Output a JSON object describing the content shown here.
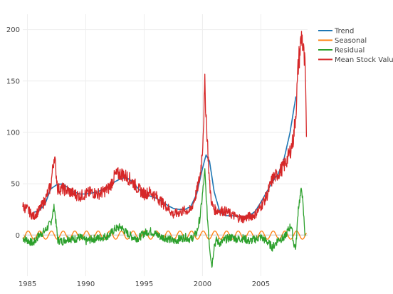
{
  "chart_data": {
    "type": "line",
    "title": "",
    "xlabel": "",
    "ylabel": "",
    "xlim": [
      1984.6,
      2009.0
    ],
    "ylim": [
      -40,
      215
    ],
    "grid": true,
    "legend_position": "top-right",
    "x_ticks": [
      {
        "value": 1985,
        "label": "1985"
      },
      {
        "value": 1990,
        "label": "1990"
      },
      {
        "value": 1995,
        "label": "1995"
      },
      {
        "value": 2000,
        "label": "2000"
      },
      {
        "value": 2005,
        "label": "2005"
      }
    ],
    "y_ticks": [
      {
        "value": 0,
        "label": "0"
      },
      {
        "value": 50,
        "label": "50"
      },
      {
        "value": 100,
        "label": "100"
      },
      {
        "value": 150,
        "label": "150"
      },
      {
        "value": 200,
        "label": "200"
      }
    ],
    "series": [
      {
        "name": "Trend",
        "color": "#1f77b4",
        "x": [
          1985.5,
          1986.0,
          1986.5,
          1987.0,
          1987.5,
          1988.0,
          1988.5,
          1989.0,
          1989.5,
          1990.0,
          1990.5,
          1991.0,
          1991.5,
          1992.0,
          1992.5,
          1993.0,
          1993.5,
          1994.0,
          1994.5,
          1995.0,
          1995.5,
          1996.0,
          1996.5,
          1997.0,
          1997.5,
          1998.0,
          1998.5,
          1999.0,
          1999.5,
          2000.0,
          2000.3,
          2000.6,
          2001.0,
          2001.5,
          2002.0,
          2002.5,
          2003.0,
          2003.5,
          2004.0,
          2004.5,
          2005.0,
          2005.5,
          2006.0,
          2006.5,
          2007.0,
          2007.5,
          2008.0
        ],
        "y": [
          22,
          24,
          30,
          45,
          49,
          50,
          46,
          42,
          40,
          40,
          41,
          42,
          45,
          48,
          52,
          55,
          56,
          52,
          45,
          40,
          38,
          36,
          33,
          29,
          26,
          25,
          25,
          28,
          40,
          65,
          78,
          72,
          42,
          22,
          19,
          19,
          18,
          18,
          19,
          23,
          32,
          42,
          52,
          60,
          75,
          100,
          135
        ]
      },
      {
        "name": "Seasonal",
        "color": "#ff7f0e",
        "x": [
          1984.6,
          2008.9
        ],
        "amplitude": 4,
        "period_years": 1
      },
      {
        "name": "Residual",
        "color": "#2ca02c",
        "x": [
          1984.6,
          1985.0,
          1985.5,
          1986.0,
          1986.5,
          1987.0,
          1987.3,
          1987.6,
          1988.0,
          1988.5,
          1989.0,
          1989.5,
          1990.0,
          1990.5,
          1991.0,
          1991.5,
          1992.0,
          1992.5,
          1993.0,
          1993.5,
          1994.0,
          1994.5,
          1995.0,
          1995.5,
          1996.0,
          1996.5,
          1997.0,
          1997.5,
          1998.0,
          1998.5,
          1999.0,
          1999.5,
          1999.8,
          2000.0,
          2000.2,
          2000.4,
          2000.6,
          2000.8,
          2001.0,
          2001.2,
          2001.5,
          2002.0,
          2002.5,
          2003.0,
          2003.5,
          2004.0,
          2004.5,
          2005.0,
          2005.5,
          2006.0,
          2006.5,
          2007.0,
          2007.3,
          2007.6,
          2007.8,
          2008.0,
          2008.2,
          2008.5,
          2008.8
        ],
        "y": [
          -3,
          -5,
          -8,
          0,
          4,
          12,
          28,
          -5,
          -6,
          -3,
          -4,
          -2,
          -6,
          -4,
          -3,
          -2,
          0,
          6,
          8,
          2,
          -2,
          -3,
          2,
          4,
          1,
          -2,
          -3,
          -6,
          -4,
          -2,
          -4,
          2,
          18,
          40,
          62,
          20,
          -10,
          -30,
          -10,
          -5,
          -8,
          -4,
          -2,
          -4,
          -3,
          -6,
          -4,
          -2,
          -6,
          -12,
          -4,
          -3,
          4,
          10,
          -8,
          -12,
          26,
          46,
          -2
        ]
      },
      {
        "name": "Mean Stock Value",
        "color": "#d62728",
        "x": [
          1984.6,
          1985.0,
          1985.5,
          1986.0,
          1986.5,
          1987.0,
          1987.3,
          1987.6,
          1988.0,
          1988.5,
          1989.0,
          1989.5,
          1990.0,
          1990.5,
          1991.0,
          1991.5,
          1992.0,
          1992.5,
          1993.0,
          1993.5,
          1994.0,
          1994.5,
          1995.0,
          1995.5,
          1996.0,
          1996.5,
          1997.0,
          1997.5,
          1998.0,
          1998.5,
          1999.0,
          1999.5,
          1999.8,
          2000.0,
          2000.2,
          2000.4,
          2000.6,
          2000.8,
          2001.0,
          2001.2,
          2001.5,
          2002.0,
          2002.5,
          2003.0,
          2003.5,
          2004.0,
          2004.5,
          2005.0,
          2005.5,
          2006.0,
          2006.5,
          2007.0,
          2007.3,
          2007.6,
          2007.8,
          2008.0,
          2008.2,
          2008.5,
          2008.8,
          2008.9
        ],
        "y": [
          28,
          25,
          18,
          24,
          34,
          48,
          78,
          45,
          45,
          43,
          40,
          38,
          40,
          42,
          40,
          42,
          46,
          58,
          60,
          57,
          52,
          45,
          40,
          42,
          38,
          32,
          27,
          20,
          22,
          24,
          24,
          42,
          58,
          85,
          145,
          95,
          50,
          30,
          25,
          24,
          24,
          23,
          20,
          17,
          16,
          18,
          20,
          28,
          38,
          55,
          60,
          68,
          75,
          85,
          95,
          120,
          165,
          195,
          160,
          92
        ]
      }
    ]
  }
}
